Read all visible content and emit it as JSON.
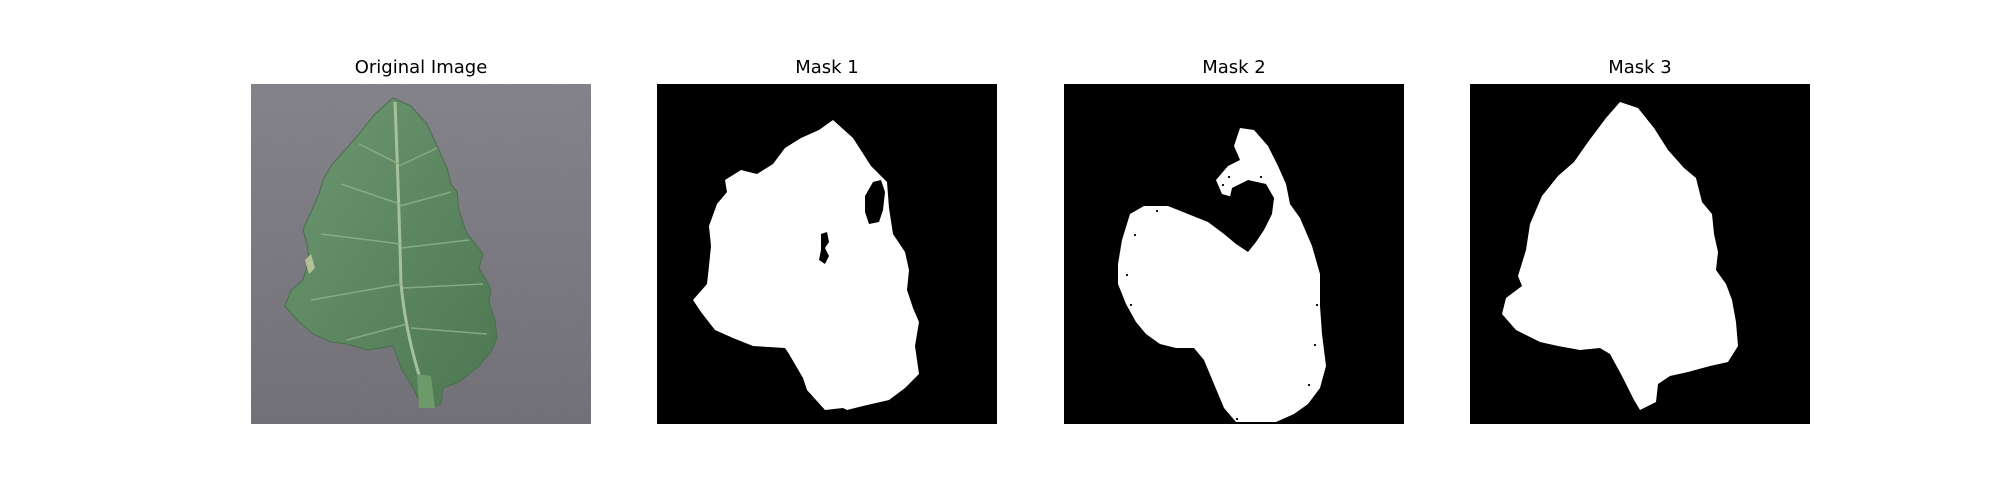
{
  "figure": {
    "panels": [
      {
        "title": "Original Image",
        "content": "leaf-photo"
      },
      {
        "title": "Mask 1",
        "content": "binary-mask"
      },
      {
        "title": "Mask 2",
        "content": "binary-mask"
      },
      {
        "title": "Mask 3",
        "content": "binary-mask"
      }
    ],
    "colors": {
      "background": "#ffffff",
      "mask_background": "#000000",
      "mask_foreground": "#ffffff",
      "photo_background": "#77767d",
      "leaf": "#5f8a63"
    }
  }
}
